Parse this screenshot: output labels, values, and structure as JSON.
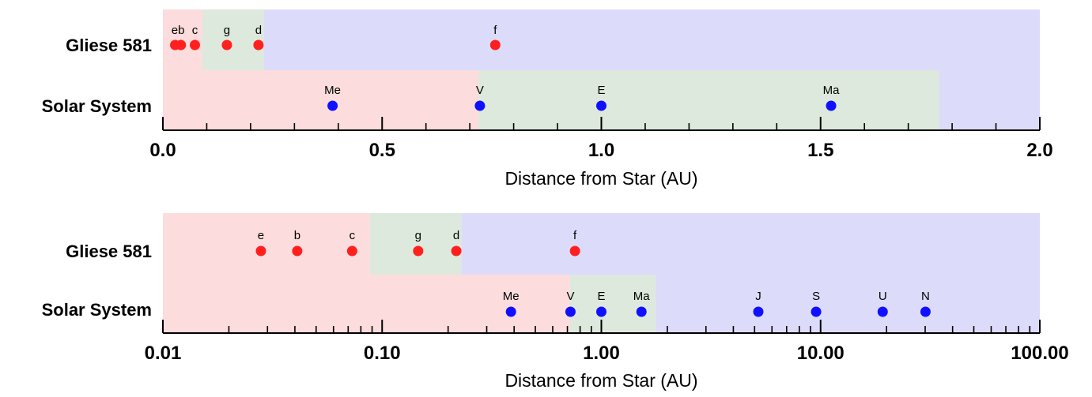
{
  "colors": {
    "hot_zone": "#fcdcdc",
    "habitable_zone": "#dde9dd",
    "cold_zone": "#dcdcfa",
    "gliese_point": "#ff1f1f",
    "solar_point": "#1010ff",
    "axis": "#000000"
  },
  "chart_data": [
    {
      "type": "scatter",
      "xlabel": "Distance from Star (AU)",
      "xscale": "linear",
      "xlim": [
        0,
        2
      ],
      "xticks": [
        {
          "value": 0,
          "label": "0.0"
        },
        {
          "value": 0.5,
          "label": "0.5"
        },
        {
          "value": 1.0,
          "label": "1.0"
        },
        {
          "value": 1.5,
          "label": "1.5"
        },
        {
          "value": 2.0,
          "label": "2.0"
        }
      ],
      "minor_ticks": [
        0.1,
        0.2,
        0.3,
        0.4,
        0.6,
        0.7,
        0.8,
        0.9,
        1.1,
        1.2,
        1.3,
        1.4,
        1.6,
        1.7,
        1.8,
        1.9
      ],
      "rows": [
        {
          "label": "Gliese 581",
          "habitable_zone": [
            0.09,
            0.23
          ],
          "points": [
            {
              "label": "e",
              "x": 0.028
            },
            {
              "label": "b",
              "x": 0.041
            },
            {
              "label": "c",
              "x": 0.073
            },
            {
              "label": "g",
              "x": 0.146
            },
            {
              "label": "d",
              "x": 0.218
            },
            {
              "label": "f",
              "x": 0.758
            }
          ],
          "label_groups": [
            {
              "text": "eb",
              "x": 0.0345
            },
            {
              "text": "c",
              "x": 0.073
            },
            {
              "text": "g",
              "x": 0.146
            },
            {
              "text": "d",
              "x": 0.218
            },
            {
              "text": "f",
              "x": 0.758
            }
          ]
        },
        {
          "label": "Solar System",
          "habitable_zone": [
            0.72,
            1.77
          ],
          "points": [
            {
              "label": "Me",
              "x": 0.387
            },
            {
              "label": "V",
              "x": 0.723
            },
            {
              "label": "E",
              "x": 1.0
            },
            {
              "label": "Ma",
              "x": 1.524
            }
          ]
        }
      ]
    },
    {
      "type": "scatter",
      "xlabel": "Distance from Star (AU)",
      "xscale": "log",
      "xlim": [
        0.01,
        100
      ],
      "xticks": [
        {
          "value": 0.01,
          "label": "0.01"
        },
        {
          "value": 0.1,
          "label": "0.10"
        },
        {
          "value": 1,
          "label": "1.00"
        },
        {
          "value": 10,
          "label": "10.00"
        },
        {
          "value": 100,
          "label": "100.00"
        }
      ],
      "rows": [
        {
          "label": "Gliese 581",
          "habitable_zone": [
            0.088,
            0.23
          ],
          "points": [
            {
              "label": "e",
              "x": 0.028
            },
            {
              "label": "b",
              "x": 0.041
            },
            {
              "label": "c",
              "x": 0.073
            },
            {
              "label": "g",
              "x": 0.146
            },
            {
              "label": "d",
              "x": 0.218
            },
            {
              "label": "f",
              "x": 0.758
            }
          ]
        },
        {
          "label": "Solar System",
          "habitable_zone": [
            0.72,
            1.77
          ],
          "points": [
            {
              "label": "Me",
              "x": 0.387
            },
            {
              "label": "V",
              "x": 0.723
            },
            {
              "label": "E",
              "x": 1.0
            },
            {
              "label": "Ma",
              "x": 1.524
            },
            {
              "label": "J",
              "x": 5.2
            },
            {
              "label": "S",
              "x": 9.54
            },
            {
              "label": "U",
              "x": 19.2
            },
            {
              "label": "N",
              "x": 30.1
            }
          ]
        }
      ]
    }
  ]
}
